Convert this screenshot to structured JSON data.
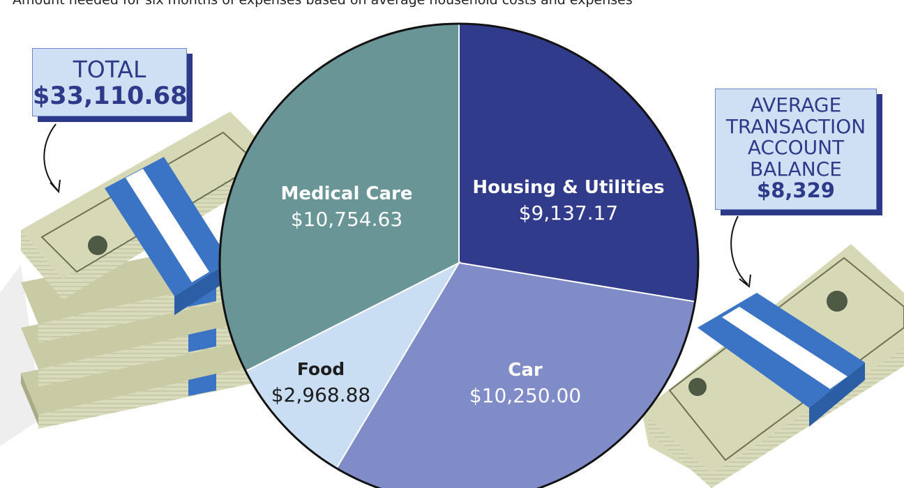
{
  "subtitle": "Amount needed for six months of expenses based on average household costs and expenses",
  "total": {
    "label": "TOTAL",
    "value": "$33,110.68"
  },
  "average_balance": {
    "label_lines": [
      "AVERAGE",
      "TRANSACTION",
      "ACCOUNT",
      "BALANCE"
    ],
    "value": "$8,329"
  },
  "chart_data": {
    "type": "pie",
    "title": "",
    "start_angle_deg": 0,
    "direction": "clockwise",
    "slices": [
      {
        "name": "Housing & Utilities",
        "value": 9137.17,
        "value_label": "$9,137.17",
        "color": "#313b8c",
        "label_color": "#ffffff"
      },
      {
        "name": "Car",
        "value": 10250.0,
        "value_label": "$10,250.00",
        "color": "#7f8cc8",
        "label_color": "#ffffff"
      },
      {
        "name": "Food",
        "value": 2968.88,
        "value_label": "$2,968.88",
        "color": "#c9ddf3",
        "label_color": "#1d1d1d"
      },
      {
        "name": "Medical Care",
        "value": 10754.63,
        "value_label": "$10,754.63",
        "color": "#6a9597",
        "label_color": "#ffffff"
      }
    ]
  },
  "illustration": {
    "left": "stack of $100 bills, four bundles",
    "right": "single bundle of $100 bills",
    "band_color": "#3b74c4",
    "bill_color": "#d7d9b9"
  }
}
